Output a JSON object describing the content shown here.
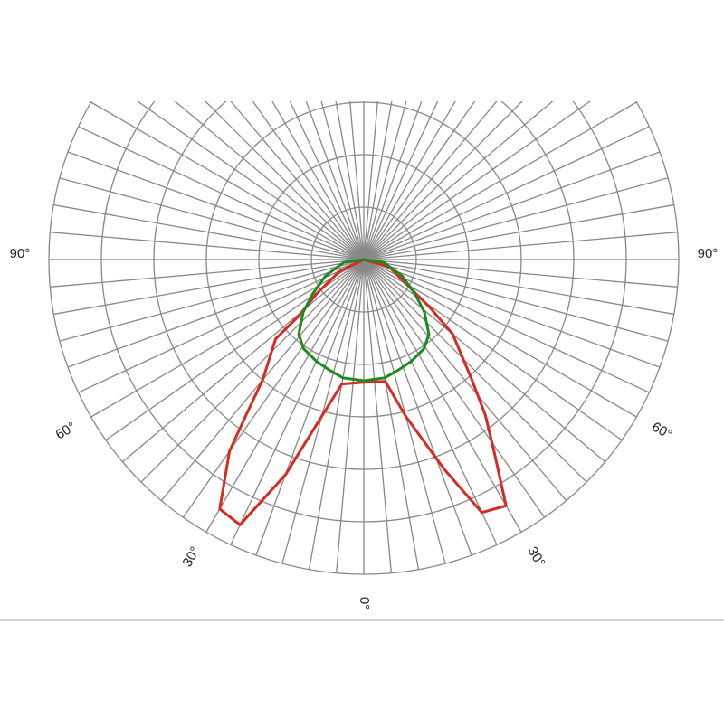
{
  "chart_data": {
    "type": "polar",
    "rlim": [
      0,
      6
    ],
    "rticks": [
      1,
      2,
      3,
      4,
      5,
      6
    ],
    "spoke_step": 5,
    "xticks": [
      {
        "value": -90,
        "label": "90°"
      },
      {
        "value": -60,
        "label": "60°"
      },
      {
        "value": -30,
        "label": "30°"
      },
      {
        "value": 0,
        "label": "0°"
      },
      {
        "value": 30,
        "label": "30°"
      },
      {
        "value": 60,
        "label": "60°"
      },
      {
        "value": 90,
        "label": "90°"
      }
    ],
    "series": [
      {
        "color": "#d62b24",
        "angles": [
          -90,
          -64,
          -54,
          -49,
          -48,
          -40,
          -37,
          -35,
          -30,
          -25,
          -20,
          -15,
          -10,
          0,
          10,
          15,
          21,
          25,
          30,
          34,
          38,
          42,
          50,
          54,
          58,
          74,
          90
        ],
        "values": [
          0,
          0.52,
          1.11,
          1.65,
          2.26,
          3.0,
          3.75,
          4.46,
          5.49,
          5.58,
          4.37,
          3.09,
          2.41,
          2.34,
          2.36,
          3.1,
          4.29,
          5.32,
          5.42,
          4.45,
          3.76,
          3.07,
          2.21,
          1.56,
          1.08,
          0.5,
          0
        ]
      },
      {
        "color": "#1e8a1e",
        "angles": [
          -90,
          -82,
          -67,
          -56,
          -49,
          -41,
          -34,
          -25,
          -17,
          -10,
          0,
          10,
          17,
          25,
          34,
          41,
          49,
          56,
          67,
          82,
          90
        ],
        "values": [
          0,
          0.38,
          0.79,
          1.18,
          1.53,
          1.89,
          2.05,
          2.14,
          2.21,
          2.29,
          2.31,
          2.29,
          2.21,
          2.14,
          2.05,
          1.89,
          1.53,
          1.18,
          0.79,
          0.38,
          0
        ]
      }
    ]
  }
}
